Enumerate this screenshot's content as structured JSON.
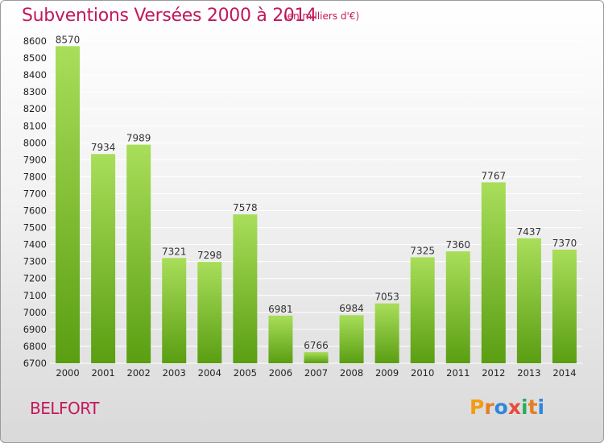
{
  "header": {
    "title": "Subventions Versées 2000 à 2014",
    "unit_note": "(en milliers d'€)"
  },
  "footer": {
    "city": "BELFORT",
    "logo_letters": [
      "P",
      "r",
      "o",
      "x",
      "i",
      "t",
      "i"
    ]
  },
  "colors": {
    "title": "#c2185b",
    "bar_top": "#a9de5a",
    "bar_bottom": "#5a9e12",
    "grid": "#ffffff",
    "logo": [
      "#f39c12",
      "#e67e22",
      "#2e86de",
      "#e74c3c",
      "#27ae60",
      "#e67e22",
      "#2e86de"
    ]
  },
  "chart_data": {
    "type": "bar",
    "title": "Subventions Versées 2000 à 2014",
    "subtitle": "(en milliers d'€)",
    "categories": [
      "2000",
      "2001",
      "2002",
      "2003",
      "2004",
      "2005",
      "2006",
      "2007",
      "2008",
      "2009",
      "2010",
      "2011",
      "2012",
      "2013",
      "2014"
    ],
    "values": [
      8570,
      7934,
      7989,
      7321,
      7298,
      7578,
      6981,
      6766,
      6984,
      7053,
      7325,
      7360,
      7767,
      7437,
      7370
    ],
    "ylim": [
      6700,
      8600
    ],
    "yticks": [
      6700,
      6800,
      6900,
      7000,
      7100,
      7200,
      7300,
      7400,
      7500,
      7600,
      7700,
      7800,
      7900,
      8000,
      8100,
      8200,
      8300,
      8400,
      8500,
      8600
    ],
    "grid": true,
    "data_labels": true
  }
}
